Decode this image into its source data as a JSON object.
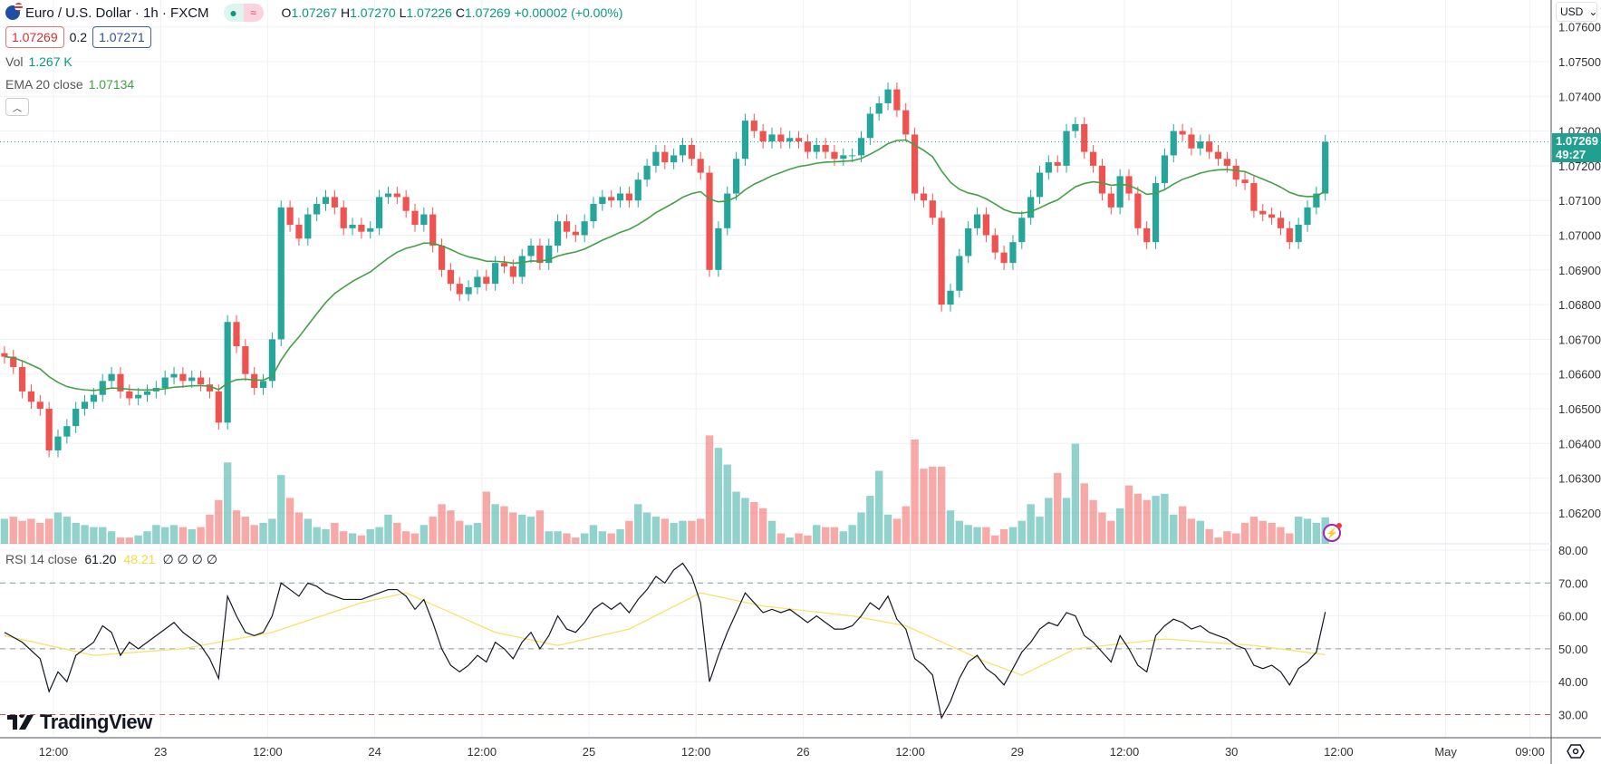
{
  "header": {
    "symbol": "Euro / U.S. Dollar · 1h · FXCM",
    "market_open_icon": "dot-icon",
    "delayed_icon": "≈",
    "open_label": "O",
    "open": "1.07267",
    "high_label": "H",
    "high": "1.07270",
    "low_label": "L",
    "low": "1.07226",
    "close_label": "C",
    "close": "1.07269",
    "change": "+0.00002 (+0.00%)",
    "bid": "1.07269",
    "spread": "0.2",
    "ask": "1.07271"
  },
  "indicators": {
    "vol_label": "Vol",
    "vol_value": "1.267 K",
    "ema_label": "EMA 20 close",
    "ema_value": "1.07134",
    "rsi_label": "RSI 14 close",
    "rsi_value": "61.20",
    "rsi_ma_value": "48.21",
    "rsi_extra": "∅ ∅ ∅ ∅"
  },
  "price_axis": {
    "currency": "USD",
    "current_price": "1.07269",
    "countdown": "49:27"
  },
  "brand": "TradingView",
  "colors": {
    "up": "#26a69a",
    "down": "#ef5350",
    "ema": "#43a047",
    "rsi": "#131722",
    "rsi_ma": "#f5e36b"
  },
  "chart_data": [
    {
      "type": "candlestick",
      "title": "Euro / U.S. Dollar · 1h · FXCM",
      "x_ticks": [
        "12:00",
        "23",
        "12:00",
        "24",
        "12:00",
        "25",
        "12:00",
        "26",
        "12:00",
        "29",
        "12:00",
        "30",
        "12:00",
        "May",
        "09:00"
      ],
      "y_ticks": [
        "1.07600",
        "1.07500",
        "1.07400",
        "1.07300",
        "1.07200",
        "1.07100",
        "1.07000",
        "1.06900",
        "1.06800",
        "1.06700",
        "1.06600",
        "1.06500",
        "1.06400",
        "1.06300",
        "1.06200"
      ],
      "ylim": [
        1.061,
        1.07678
      ],
      "default_wick": 0.0002,
      "close": [
        1.0665,
        1.0662,
        1.0655,
        1.0652,
        1.065,
        1.0638,
        1.0642,
        1.0645,
        1.065,
        1.0652,
        1.0654,
        1.0658,
        1.066,
        1.0655,
        1.0653,
        1.0654,
        1.0655,
        1.0656,
        1.0659,
        1.066,
        1.0658,
        1.0659,
        1.0657,
        1.0655,
        1.0646,
        1.0675,
        1.0668,
        1.066,
        1.0656,
        1.0658,
        1.067,
        1.0708,
        1.0703,
        1.0699,
        1.0706,
        1.0709,
        1.0711,
        1.0708,
        1.0702,
        1.0703,
        1.0701,
        1.0702,
        1.0711,
        1.0712,
        1.0711,
        1.0707,
        1.0703,
        1.0706,
        1.0697,
        1.069,
        1.0686,
        1.0683,
        1.0685,
        1.0688,
        1.0686,
        1.0692,
        1.0691,
        1.0688,
        1.0694,
        1.0697,
        1.0692,
        1.0697,
        1.0704,
        1.0701,
        1.07,
        1.0704,
        1.0709,
        1.0711,
        1.071,
        1.0712,
        1.071,
        1.0716,
        1.072,
        1.0724,
        1.0721,
        1.0723,
        1.0726,
        1.0722,
        1.0718,
        1.069,
        1.0702,
        1.0712,
        1.0722,
        1.0733,
        1.073,
        1.0727,
        1.0729,
        1.0727,
        1.0728,
        1.0727,
        1.0724,
        1.0726,
        1.0724,
        1.0722,
        1.0723,
        1.0723,
        1.0728,
        1.0735,
        1.0738,
        1.0742,
        1.0736,
        1.0729,
        1.0712,
        1.071,
        1.0705,
        1.068,
        1.0684,
        1.0694,
        1.0702,
        1.0706,
        1.07,
        1.0695,
        1.0692,
        1.0698,
        1.0705,
        1.0711,
        1.0718,
        1.0721,
        1.072,
        1.073,
        1.0732,
        1.0724,
        1.072,
        1.0712,
        1.0708,
        1.0717,
        1.0712,
        1.0702,
        1.0698,
        1.0715,
        1.0723,
        1.073,
        1.0729,
        1.0725,
        1.0727,
        1.0724,
        1.0722,
        1.072,
        1.0716,
        1.0715,
        1.0707,
        1.0706,
        1.0705,
        1.0702,
        1.0698,
        1.0703,
        1.0708,
        1.0712,
        1.07269
      ],
      "volume_k": [
        1.2,
        1.3,
        1.1,
        1.2,
        1.0,
        1.2,
        1.5,
        1.3,
        1.0,
        0.9,
        0.8,
        0.8,
        0.6,
        0.3,
        0.3,
        0.4,
        0.6,
        0.9,
        0.8,
        0.9,
        0.8,
        0.7,
        0.8,
        1.4,
        2.1,
        3.9,
        1.6,
        1.3,
        0.9,
        1.0,
        1.2,
        3.3,
        2.2,
        1.5,
        1.2,
        0.8,
        0.7,
        1.0,
        0.6,
        0.5,
        0.4,
        0.7,
        0.8,
        1.4,
        1.0,
        0.6,
        0.5,
        0.9,
        1.3,
        1.9,
        1.6,
        1.1,
        0.9,
        1.0,
        2.5,
        1.9,
        1.8,
        1.5,
        1.4,
        1.3,
        1.6,
        0.6,
        0.6,
        0.5,
        0.3,
        0.5,
        0.9,
        0.6,
        0.5,
        0.7,
        1.1,
        1.9,
        1.5,
        1.3,
        1.2,
        1.0,
        1.1,
        1.1,
        1.2,
        5.2,
        4.6,
        3.8,
        2.5,
        2.2,
        2.0,
        1.7,
        1.1,
        0.5,
        0.3,
        0.5,
        0.4,
        0.9,
        0.8,
        0.8,
        0.6,
        0.9,
        1.5,
        2.3,
        3.5,
        1.4,
        1.2,
        1.8,
        5.0,
        3.6,
        3.7,
        3.7,
        1.6,
        1.1,
        0.9,
        0.8,
        0.8,
        0.4,
        0.7,
        0.8,
        1.1,
        1.9,
        1.3,
        2.2,
        3.4,
        2.2,
        4.8,
        2.9,
        2.1,
        1.5,
        1.1,
        1.7,
        2.8,
        2.4,
        2.1,
        2.3,
        2.4,
        1.4,
        1.8,
        1.2,
        1.1,
        0.7,
        0.3,
        0.6,
        0.5,
        1.0,
        1.3,
        1.1,
        1.0,
        0.8,
        0.5,
        1.3,
        1.2,
        1.0,
        1.267
      ],
      "ema_period": 20
    },
    {
      "type": "line",
      "title": "RSI 14 close",
      "ylim": [
        23,
        80
      ],
      "y_ticks": [
        "80.00",
        "70.00",
        "60.00",
        "50.00",
        "40.00",
        "30.00"
      ],
      "levels": [
        70,
        50,
        30
      ],
      "rsi": [
        [
          0,
          55
        ],
        [
          2,
          52
        ],
        [
          4,
          47
        ],
        [
          5,
          37
        ],
        [
          6,
          43
        ],
        [
          7,
          40
        ],
        [
          8,
          48
        ],
        [
          10,
          52
        ],
        [
          11,
          57
        ],
        [
          12,
          55
        ],
        [
          13,
          48
        ],
        [
          14,
          52
        ],
        [
          15,
          50
        ],
        [
          16,
          52
        ],
        [
          18,
          56
        ],
        [
          19,
          58
        ],
        [
          20,
          55
        ],
        [
          22,
          51
        ],
        [
          23,
          47
        ],
        [
          24,
          41
        ],
        [
          25,
          66
        ],
        [
          26,
          60
        ],
        [
          27,
          55
        ],
        [
          28,
          54
        ],
        [
          29,
          55
        ],
        [
          30,
          60
        ],
        [
          31,
          70
        ],
        [
          32,
          68
        ],
        [
          33,
          66
        ],
        [
          34,
          70
        ],
        [
          35,
          69
        ],
        [
          36,
          67
        ],
        [
          37,
          66
        ],
        [
          38,
          65
        ],
        [
          40,
          65
        ],
        [
          42,
          67
        ],
        [
          43,
          68
        ],
        [
          44,
          68
        ],
        [
          45,
          66
        ],
        [
          46,
          62
        ],
        [
          47,
          65
        ],
        [
          48,
          58
        ],
        [
          49,
          50
        ],
        [
          50,
          45
        ],
        [
          51,
          43
        ],
        [
          52,
          45
        ],
        [
          53,
          48
        ],
        [
          54,
          46
        ],
        [
          55,
          52
        ],
        [
          56,
          50
        ],
        [
          57,
          47
        ],
        [
          58,
          52
        ],
        [
          59,
          55
        ],
        [
          60,
          50
        ],
        [
          61,
          54
        ],
        [
          62,
          60
        ],
        [
          63,
          56
        ],
        [
          64,
          55
        ],
        [
          65,
          58
        ],
        [
          66,
          62
        ],
        [
          67,
          64
        ],
        [
          68,
          62
        ],
        [
          69,
          64
        ],
        [
          70,
          61
        ],
        [
          71,
          65
        ],
        [
          72,
          68
        ],
        [
          73,
          72
        ],
        [
          74,
          70
        ],
        [
          75,
          74
        ],
        [
          76,
          76
        ],
        [
          77,
          72
        ],
        [
          78,
          64
        ],
        [
          79,
          40
        ],
        [
          80,
          48
        ],
        [
          81,
          55
        ],
        [
          82,
          61
        ],
        [
          83,
          67
        ],
        [
          84,
          64
        ],
        [
          85,
          61
        ],
        [
          86,
          62
        ],
        [
          87,
          61
        ],
        [
          88,
          62
        ],
        [
          89,
          60
        ],
        [
          90,
          58
        ],
        [
          91,
          60
        ],
        [
          92,
          58
        ],
        [
          93,
          56
        ],
        [
          94,
          56
        ],
        [
          95,
          57
        ],
        [
          96,
          60
        ],
        [
          97,
          64
        ],
        [
          98,
          62
        ],
        [
          99,
          66
        ],
        [
          100,
          59
        ],
        [
          101,
          56
        ],
        [
          102,
          47
        ],
        [
          103,
          45
        ],
        [
          104,
          42
        ],
        [
          105,
          29
        ],
        [
          106,
          34
        ],
        [
          107,
          41
        ],
        [
          108,
          46
        ],
        [
          109,
          48
        ],
        [
          110,
          44
        ],
        [
          111,
          42
        ],
        [
          112,
          39
        ],
        [
          113,
          44
        ],
        [
          114,
          49
        ],
        [
          115,
          52
        ],
        [
          116,
          56
        ],
        [
          117,
          58
        ],
        [
          118,
          57
        ],
        [
          119,
          61
        ],
        [
          120,
          60
        ],
        [
          121,
          54
        ],
        [
          122,
          52
        ],
        [
          123,
          49
        ],
        [
          124,
          46
        ],
        [
          125,
          54
        ],
        [
          126,
          50
        ],
        [
          127,
          45
        ],
        [
          128,
          43
        ],
        [
          129,
          54
        ],
        [
          130,
          57
        ],
        [
          131,
          59
        ],
        [
          132,
          58
        ],
        [
          133,
          56
        ],
        [
          134,
          57
        ],
        [
          135,
          55
        ],
        [
          136,
          54
        ],
        [
          137,
          53
        ],
        [
          138,
          51
        ],
        [
          139,
          50
        ],
        [
          140,
          45
        ],
        [
          141,
          44
        ],
        [
          142,
          45
        ],
        [
          143,
          43
        ],
        [
          144,
          39
        ],
        [
          145,
          44
        ],
        [
          146,
          46
        ],
        [
          147,
          49
        ],
        [
          148,
          61.2
        ]
      ],
      "rsi_ma": [
        [
          0,
          54
        ],
        [
          10,
          48
        ],
        [
          20,
          50
        ],
        [
          30,
          55
        ],
        [
          40,
          64
        ],
        [
          45,
          67
        ],
        [
          55,
          55
        ],
        [
          62,
          51
        ],
        [
          70,
          56
        ],
        [
          78,
          67
        ],
        [
          85,
          63
        ],
        [
          95,
          60
        ],
        [
          101,
          57
        ],
        [
          110,
          46
        ],
        [
          114,
          42
        ],
        [
          120,
          50
        ],
        [
          130,
          53
        ],
        [
          140,
          51
        ],
        [
          148,
          48.21
        ]
      ]
    }
  ]
}
